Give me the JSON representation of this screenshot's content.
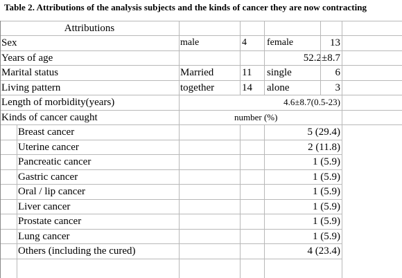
{
  "title": "Table  2.  Attributions of the analysis subjects and the kinds of cancer they are now contracting",
  "header": {
    "attributions": "Attributions"
  },
  "rows": {
    "sex": {
      "label": "Sex",
      "male": "male",
      "male_n": "4",
      "female": "female",
      "female_n": "13"
    },
    "age": {
      "label": "Years of age",
      "value": "52.2±8.7"
    },
    "marital": {
      "label": "Marital status",
      "married": "Married",
      "married_n": "11",
      "single": "single",
      "single_n": "6"
    },
    "living": {
      "label": "Living pattern",
      "together": "together",
      "together_n": "14",
      "alone": "alone",
      "alone_n": "3"
    },
    "morbidity": {
      "label": "Length of morbidity(years)",
      "value": "4.6±8.7(0.5-23)"
    },
    "kinds": {
      "label": "Kinds of cancer caught",
      "unit": "number (%)"
    }
  },
  "cancers": [
    {
      "name": "Breast cancer",
      "value": "5 (29.4)"
    },
    {
      "name": "Uterine cancer",
      "value": "2 (11.8)"
    },
    {
      "name": "Pancreatic cancer",
      "value": "1 (5.9)"
    },
    {
      "name": "Gastric cancer",
      "value": "1 (5.9)"
    },
    {
      "name": "Oral / lip cancer",
      "value": "1 (5.9)"
    },
    {
      "name": "Liver cancer",
      "value": "1 (5.9)"
    },
    {
      "name": "Prostate cancer",
      "value": "1 (5.9)"
    },
    {
      "name": "Lung cancer",
      "value": "1 (5.9)"
    },
    {
      "name": "Others (including the cured)",
      "value": "4 (23.4)"
    }
  ]
}
